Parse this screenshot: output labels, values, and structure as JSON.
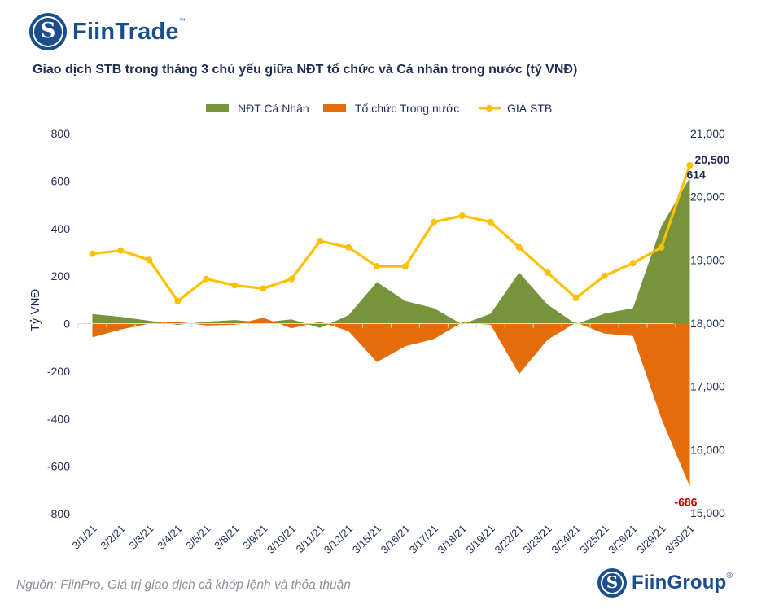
{
  "header": {
    "logo_icon": "fiintrade-s-logo-icon",
    "brand": "FiinTrade",
    "brand_mark": "™"
  },
  "footer": {
    "source": "Nguồn: FiinPro, Giá trị giao dịch cả khớp lệnh và thỏa thuận",
    "logo_icon": "fiingroup-s-logo-icon",
    "brand": "FiinGroup",
    "brand_mark": "®"
  },
  "chart_data": {
    "type": "area",
    "title": "Giao dịch STB trong tháng 3 chủ yếu giữa NĐT tổ chức và Cá nhân trong nước (tỷ VNĐ)",
    "ylabel": "Tỷ VNĐ",
    "xlabel": "",
    "ylim": [
      -800,
      800
    ],
    "y_ticks": [
      "800",
      "600",
      "400",
      "200",
      "0",
      "-200",
      "-400",
      "-600",
      "-800"
    ],
    "y2lim": [
      15000,
      21000
    ],
    "y2_ticks": [
      "21,000",
      "20,000",
      "19,000",
      "18,000",
      "17,000",
      "16,000",
      "15,000"
    ],
    "legend_position": "top",
    "categories": [
      "3/1/21",
      "3/2/21",
      "3/3/21",
      "3/4/21",
      "3/5/21",
      "3/8/21",
      "3/9/21",
      "3/10/21",
      "3/11/21",
      "3/12/21",
      "3/15/21",
      "3/16/21",
      "3/17/21",
      "3/18/21",
      "3/19/21",
      "3/22/21",
      "3/23/21",
      "3/24/21",
      "3/25/21",
      "3/26/21",
      "3/29/21",
      "3/30/21"
    ],
    "series": [
      {
        "name": "NĐT Cá Nhân",
        "type": "area",
        "axis": "left",
        "color": "#77933c",
        "values": [
          40,
          28,
          12,
          -5,
          8,
          15,
          5,
          18,
          -18,
          35,
          175,
          95,
          65,
          -3,
          42,
          215,
          80,
          -2,
          42,
          65,
          410,
          614
        ]
      },
      {
        "name": "Tổ chức Trong nước",
        "type": "area",
        "axis": "left",
        "color": "#e46c0a",
        "values": [
          -58,
          -25,
          0,
          8,
          -8,
          -5,
          25,
          -20,
          8,
          -32,
          -162,
          -95,
          -65,
          5,
          -5,
          -212,
          -68,
          4,
          -42,
          -52,
          -400,
          -686
        ]
      },
      {
        "name": "GIÁ STB",
        "type": "line",
        "axis": "right",
        "color": "#ffc000",
        "values": [
          19100,
          19150,
          19000,
          18350,
          18700,
          18600,
          18550,
          18700,
          19300,
          19200,
          18900,
          18900,
          19600,
          19700,
          19600,
          19200,
          18800,
          18400,
          18750,
          18950,
          19200,
          20500
        ]
      }
    ],
    "annotations": [
      {
        "text": "20,500",
        "series": "GIÁ STB",
        "category": "3/30/21",
        "color": "#1f2d52"
      },
      {
        "text": "614",
        "series": "NĐT Cá Nhân",
        "category": "3/30/21",
        "color": "#1f2d52"
      },
      {
        "text": "-686",
        "series": "Tổ chức Trong nước",
        "category": "3/30/21",
        "color": "#c00000"
      }
    ]
  }
}
